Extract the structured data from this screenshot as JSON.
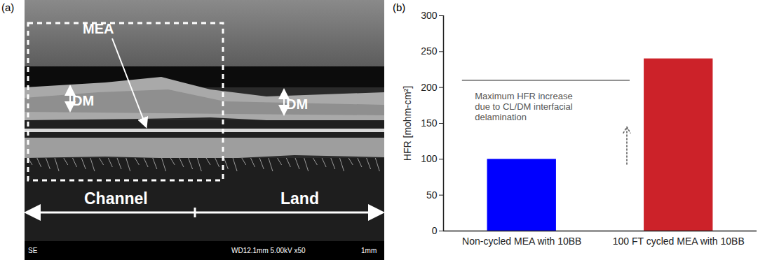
{
  "chart_data": {
    "type": "bar",
    "panel_label": "(b)",
    "categories": [
      "Non-cycled MEA with 10BB",
      "100 FT cycled MEA with 10BB"
    ],
    "values": [
      100,
      240
    ],
    "colors": [
      "#0000ff",
      "#cc2229"
    ],
    "y_label": "HFR [mohm-cm²]",
    "ylim": [
      0,
      300
    ],
    "yticks": [
      0,
      50,
      100,
      150,
      200,
      250,
      300
    ],
    "annotation": {
      "text": [
        "Maximum HFR increase",
        "due to CL/DM interfacial",
        "delamination"
      ],
      "text_y": 194,
      "line_y": 210,
      "arrow": {
        "from": 93,
        "to": 145
      }
    }
  },
  "image_panel": {
    "panel_label": "(a)",
    "mea": "MEA",
    "dm": [
      "DM",
      "DM"
    ],
    "channel": "Channel",
    "land": "Land",
    "info_bar": [
      "SE",
      "WD12.1mm 5.00kV x50",
      "1mm"
    ]
  }
}
